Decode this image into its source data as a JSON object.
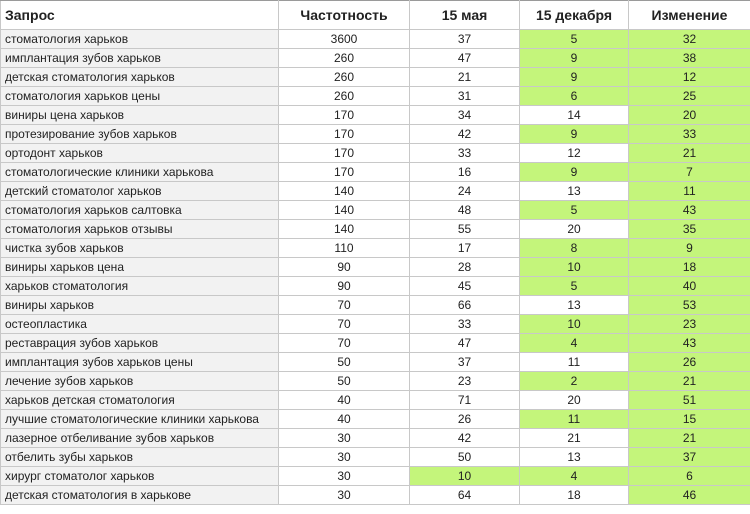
{
  "headers": [
    "Запрос",
    "Частотность",
    "15 мая",
    "15 декабря",
    "Изменение"
  ],
  "highlight_color": "#c4f57b",
  "rows": [
    {
      "q": "стоматология харьков",
      "freq": "3600",
      "may": "37",
      "dec": "5",
      "change": "32",
      "hl": [
        false,
        true,
        true
      ]
    },
    {
      "q": "имплантация зубов харьков",
      "freq": "260",
      "may": "47",
      "dec": "9",
      "change": "38",
      "hl": [
        false,
        true,
        true
      ]
    },
    {
      "q": "детская стоматология харьков",
      "freq": "260",
      "may": "21",
      "dec": "9",
      "change": "12",
      "hl": [
        false,
        true,
        true
      ]
    },
    {
      "q": "стоматология харьков цены",
      "freq": "260",
      "may": "31",
      "dec": "6",
      "change": "25",
      "hl": [
        false,
        true,
        true
      ]
    },
    {
      "q": "виниры цена харьков",
      "freq": "170",
      "may": "34",
      "dec": "14",
      "change": "20",
      "hl": [
        false,
        false,
        true
      ]
    },
    {
      "q": "протезирование зубов харьков",
      "freq": "170",
      "may": "42",
      "dec": "9",
      "change": "33",
      "hl": [
        false,
        true,
        true
      ]
    },
    {
      "q": "ортодонт харьков",
      "freq": "170",
      "may": "33",
      "dec": "12",
      "change": "21",
      "hl": [
        false,
        false,
        true
      ]
    },
    {
      "q": "стоматологические клиники харькова",
      "freq": "170",
      "may": "16",
      "dec": "9",
      "change": "7",
      "hl": [
        false,
        true,
        true
      ]
    },
    {
      "q": "детский стоматолог харьков",
      "freq": "140",
      "may": "24",
      "dec": "13",
      "change": "11",
      "hl": [
        false,
        false,
        true
      ]
    },
    {
      "q": "стоматология харьков салтовка",
      "freq": "140",
      "may": "48",
      "dec": "5",
      "change": "43",
      "hl": [
        false,
        true,
        true
      ]
    },
    {
      "q": "стоматология харьков отзывы",
      "freq": "140",
      "may": "55",
      "dec": "20",
      "change": "35",
      "hl": [
        false,
        false,
        true
      ]
    },
    {
      "q": "чистка зубов харьков",
      "freq": "110",
      "may": "17",
      "dec": "8",
      "change": "9",
      "hl": [
        false,
        true,
        true
      ]
    },
    {
      "q": "виниры харьков цена",
      "freq": "90",
      "may": "28",
      "dec": "10",
      "change": "18",
      "hl": [
        false,
        true,
        true
      ]
    },
    {
      "q": "харьков стоматология",
      "freq": "90",
      "may": "45",
      "dec": "5",
      "change": "40",
      "hl": [
        false,
        true,
        true
      ]
    },
    {
      "q": "виниры харьков",
      "freq": "70",
      "may": "66",
      "dec": "13",
      "change": "53",
      "hl": [
        false,
        false,
        true
      ]
    },
    {
      "q": "остеопластика",
      "freq": "70",
      "may": "33",
      "dec": "10",
      "change": "23",
      "hl": [
        false,
        true,
        true
      ]
    },
    {
      "q": "реставрация зубов харьков",
      "freq": "70",
      "may": "47",
      "dec": "4",
      "change": "43",
      "hl": [
        false,
        true,
        true
      ]
    },
    {
      "q": "имплантация зубов харьков цены",
      "freq": "50",
      "may": "37",
      "dec": "11",
      "change": "26",
      "hl": [
        false,
        false,
        true
      ]
    },
    {
      "q": "лечение зубов харьков",
      "freq": "50",
      "may": "23",
      "dec": "2",
      "change": "21",
      "hl": [
        false,
        true,
        true
      ]
    },
    {
      "q": "харьков детская стоматология",
      "freq": "40",
      "may": "71",
      "dec": "20",
      "change": "51",
      "hl": [
        false,
        false,
        true
      ]
    },
    {
      "q": "лучшие стоматологические клиники харькова",
      "freq": "40",
      "may": "26",
      "dec": "11",
      "change": "15",
      "hl": [
        false,
        true,
        true
      ]
    },
    {
      "q": "лазерное отбеливание зубов харьков",
      "freq": "30",
      "may": "42",
      "dec": "21",
      "change": "21",
      "hl": [
        false,
        false,
        true
      ]
    },
    {
      "q": "отбелить зубы харьков",
      "freq": "30",
      "may": "50",
      "dec": "13",
      "change": "37",
      "hl": [
        false,
        false,
        true
      ]
    },
    {
      "q": "хирург стоматолог харьков",
      "freq": "30",
      "may": "10",
      "dec": "4",
      "change": "6",
      "hl": [
        true,
        true,
        true
      ]
    },
    {
      "q": "детская стоматология в харькове",
      "freq": "30",
      "may": "64",
      "dec": "18",
      "change": "46",
      "hl": [
        false,
        false,
        true
      ]
    }
  ]
}
